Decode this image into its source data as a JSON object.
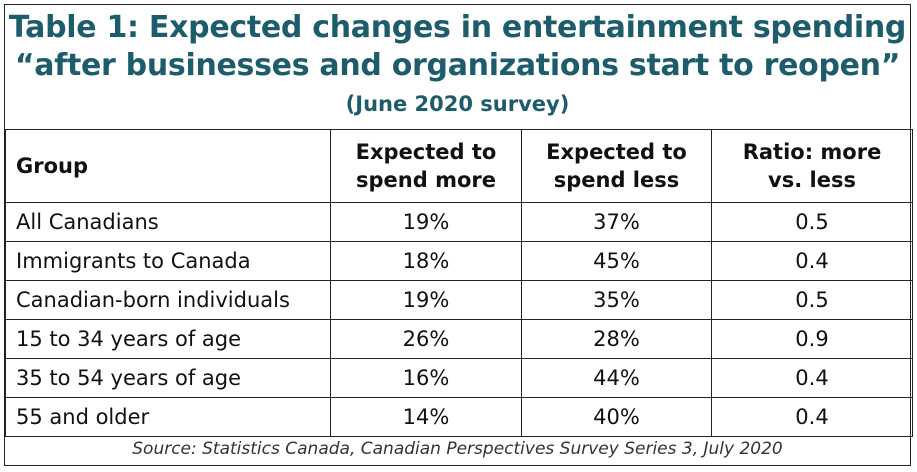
{
  "chart_data": {
    "type": "table",
    "title_line1": "Table 1: Expected changes in entertainment spending",
    "title_line2": "“after businesses and organizations start to reopen”",
    "subtitle": "(June 2020 survey)",
    "columns": [
      "Group",
      "Expected to spend more",
      "Expected to spend less",
      "Ratio: more vs. less"
    ],
    "header": {
      "group": "Group",
      "more_line1": "Expected to",
      "more_line2": "spend more",
      "less_line1": "Expected to",
      "less_line2": "spend less",
      "ratio_line1": "Ratio: more",
      "ratio_line2": "vs. less"
    },
    "rows": [
      {
        "group": "All Canadians",
        "more": "19%",
        "less": "37%",
        "ratio": "0.5"
      },
      {
        "group": "Immigrants to Canada",
        "more": "18%",
        "less": "45%",
        "ratio": "0.4"
      },
      {
        "group": "Canadian-born individuals",
        "more": "19%",
        "less": "35%",
        "ratio": "0.5"
      },
      {
        "group": "15 to 34 years of age",
        "more": "26%",
        "less": "28%",
        "ratio": "0.9"
      },
      {
        "group": "35 to 54 years of age",
        "more": "16%",
        "less": "44%",
        "ratio": "0.4"
      },
      {
        "group": "55 and older",
        "more": "14%",
        "less": "40%",
        "ratio": "0.4"
      }
    ],
    "source": "Source: Statistics Canada, Canadian Perspectives Survey Series 3, July 2020"
  },
  "colors": {
    "title": "#1c5c6b",
    "border": "#222222",
    "text": "#111111"
  }
}
